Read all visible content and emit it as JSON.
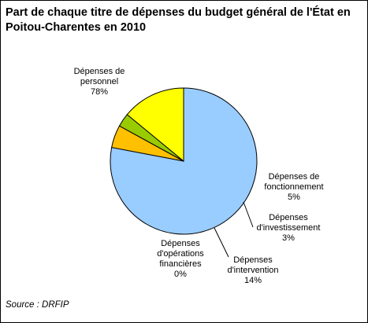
{
  "chart_data": {
    "type": "pie",
    "title": "Part de chaque titre de dépenses du budget général de l'État en Poitou-Charentes en 2010",
    "source": "Source : DRFIP",
    "legend": "none",
    "slices": [
      {
        "label": "Dépenses de personnel",
        "lines": [
          "Dépenses de",
          "personnel",
          "78%"
        ],
        "value": 78,
        "color": "#99ccff"
      },
      {
        "label": "Dépenses de fonctionnement",
        "lines": [
          "Dépenses de",
          "fonctionnement",
          "5%"
        ],
        "value": 5,
        "color": "#ffc000"
      },
      {
        "label": "Dépenses d'investissement",
        "lines": [
          "Dépenses",
          "d'investissement",
          "3%"
        ],
        "value": 3,
        "color": "#99cc00"
      },
      {
        "label": "Dépenses d'intervention",
        "lines": [
          "Dépenses",
          "d'intervention",
          "14%"
        ],
        "value": 14,
        "color": "#ffff00"
      },
      {
        "label": "Dépenses d'opérations financières",
        "lines": [
          "Dépenses",
          "d'opérations",
          "financières",
          "0%"
        ],
        "value": 0,
        "color": "#ff9900"
      }
    ]
  }
}
